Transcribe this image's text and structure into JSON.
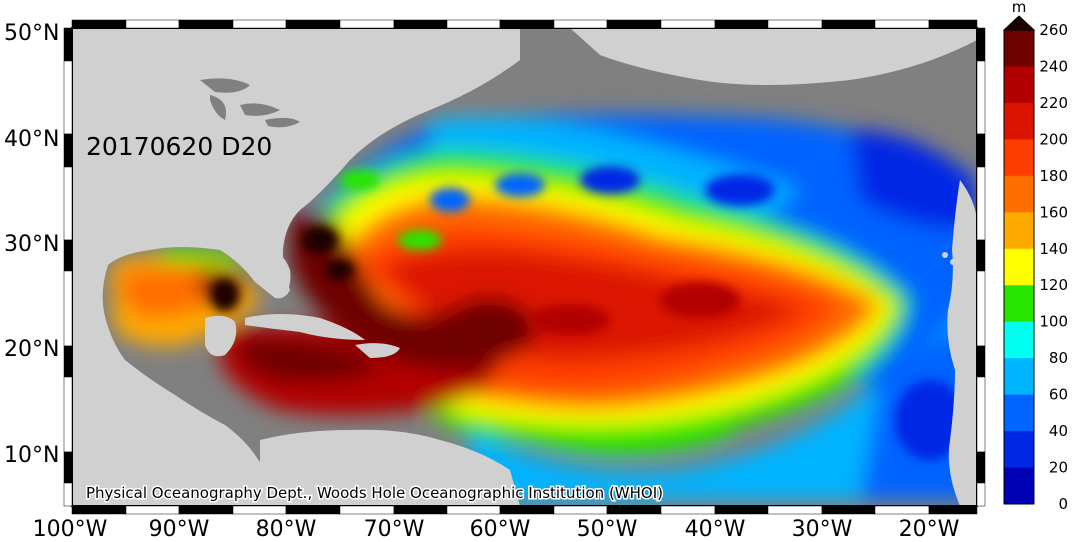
{
  "map": {
    "title": "20170620 D20",
    "credit": "Physical Oceanography Dept., Woods Hole Oceanographic Institution (WHOI)",
    "lat_labels": [
      "50°N",
      "40°N",
      "30°N",
      "20°N",
      "10°N"
    ],
    "lon_labels": [
      "100°W",
      "90°W",
      "80°W",
      "70°W",
      "60°W",
      "50°W",
      "40°W",
      "30°W",
      "20°W"
    ],
    "land_color": "#d0d0d0",
    "unobserved_ocean_color": "#808080"
  },
  "colorbar": {
    "unit": "m",
    "ticks": [
      "260",
      "240",
      "220",
      "200",
      "180",
      "160",
      "140",
      "120",
      "100",
      "80",
      "60",
      "40",
      "20",
      "0"
    ],
    "colors": [
      "#1a0000",
      "#6e0000",
      "#b20000",
      "#dc1400",
      "#ff3c00",
      "#ff6e00",
      "#ffaa00",
      "#ffff00",
      "#28e600",
      "#00fff0",
      "#00b4ff",
      "#0064ff",
      "#0028e6",
      "#0000b4"
    ]
  }
}
